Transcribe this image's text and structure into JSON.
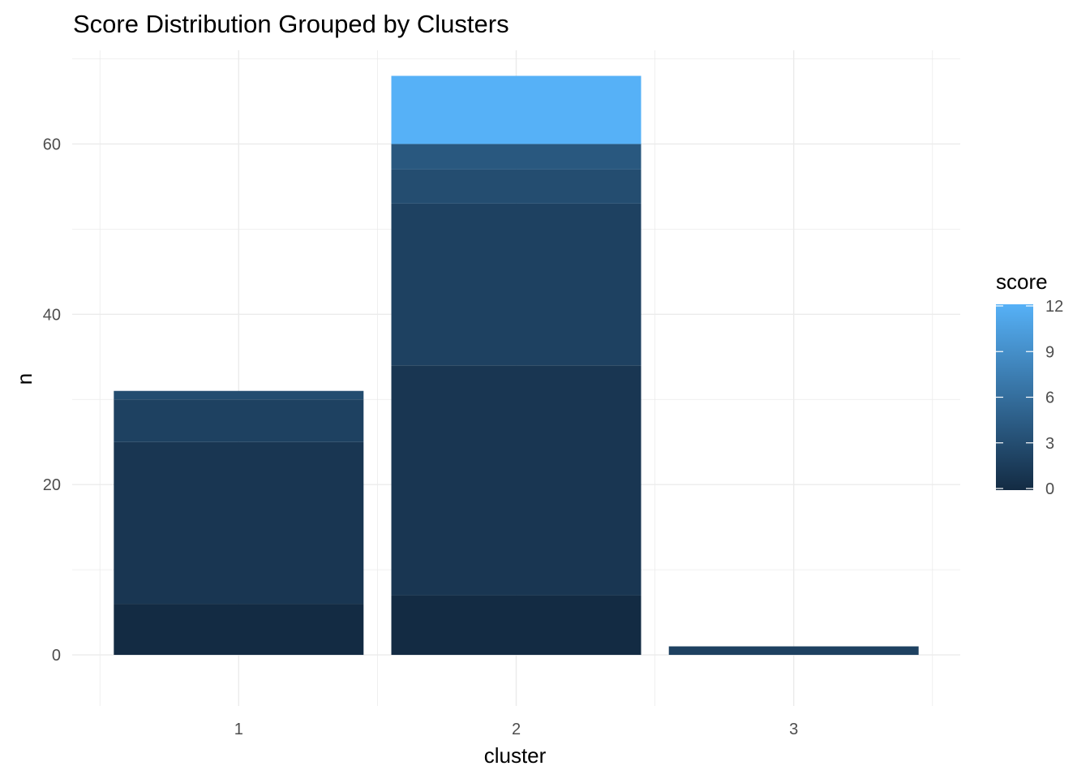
{
  "chart_data": {
    "type": "bar",
    "stacked": true,
    "title": "Score Distribution Grouped by Clusters",
    "xlabel": "cluster",
    "ylabel": "n",
    "categories": [
      "1",
      "2",
      "3"
    ],
    "ylim": [
      -6,
      71
    ],
    "y_ticks": [
      0,
      20,
      40,
      60
    ],
    "y_tick_labels": [
      "0",
      "20",
      "40",
      "60"
    ],
    "grid": true,
    "legend": {
      "title": "score",
      "position": "right",
      "type": "colorbar",
      "range": [
        0,
        12
      ],
      "ticks": [
        0,
        3,
        6,
        9,
        12
      ],
      "tick_labels": [
        "0",
        "3",
        "6",
        "9",
        "12"
      ],
      "low_color": "#132B43",
      "high_color": "#56B1F7"
    },
    "stacks": [
      {
        "category": "1",
        "segments": [
          {
            "score": 0,
            "n": 6
          },
          {
            "score": 1,
            "n": 19
          },
          {
            "score": 2,
            "n": 5
          },
          {
            "score": 3,
            "n": 1
          }
        ]
      },
      {
        "category": "2",
        "segments": [
          {
            "score": 0,
            "n": 7
          },
          {
            "score": 1,
            "n": 27
          },
          {
            "score": 2,
            "n": 19
          },
          {
            "score": 3,
            "n": 4
          },
          {
            "score": 4,
            "n": 3
          },
          {
            "score": 12,
            "n": 8
          }
        ]
      },
      {
        "category": "3",
        "segments": [
          {
            "score": 2,
            "n": 1
          }
        ]
      }
    ],
    "totals": [
      31,
      68,
      1
    ]
  }
}
